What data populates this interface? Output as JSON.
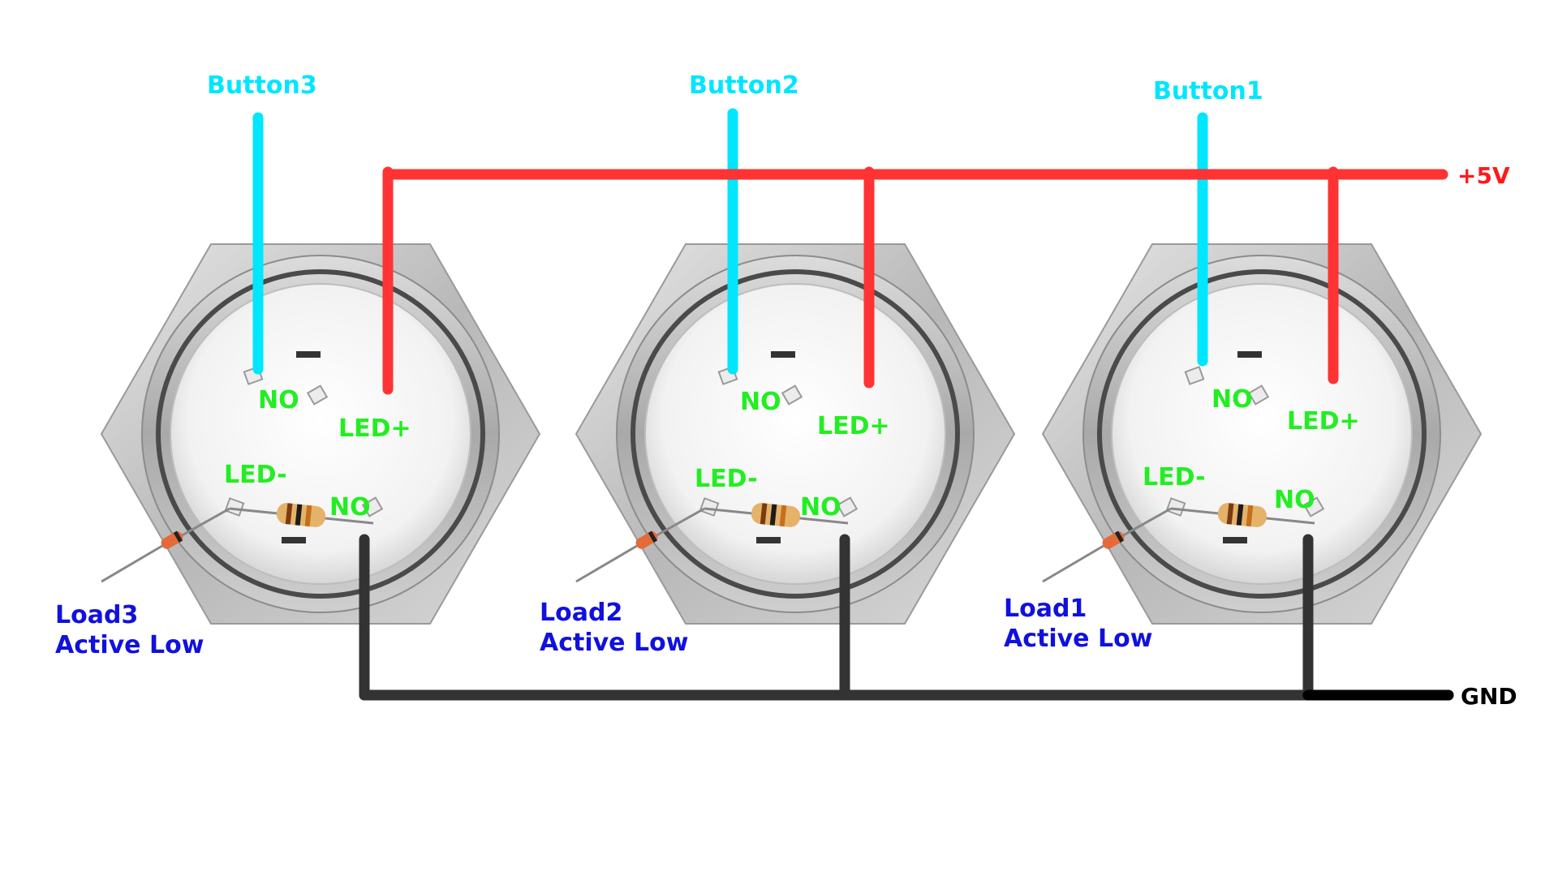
{
  "rails": {
    "vcc_label": "+5V",
    "gnd_label": "GND",
    "vcc_color": "#ff3333",
    "gnd_color": "#333333"
  },
  "colors": {
    "button_wire": "#00e6ff",
    "pin_label": "#22ee22",
    "load_label": "#1111dd",
    "switch_body": "#c9c9c9"
  },
  "buttons": [
    {
      "button_label": "Button3",
      "no_top": "NO",
      "led_plus": "LED+",
      "led_minus": "LED-",
      "no_bottom": "NO",
      "load_title": "Load3",
      "load_mode": "Active Low"
    },
    {
      "button_label": "Button2",
      "no_top": "NO",
      "led_plus": "LED+",
      "led_minus": "LED-",
      "no_bottom": "NO",
      "load_title": "Load2",
      "load_mode": "Active Low"
    },
    {
      "button_label": "Button1",
      "no_top": "NO",
      "led_plus": "LED+",
      "led_minus": "LED-",
      "no_bottom": "NO",
      "load_title": "Load1",
      "load_mode": "Active Low"
    }
  ]
}
